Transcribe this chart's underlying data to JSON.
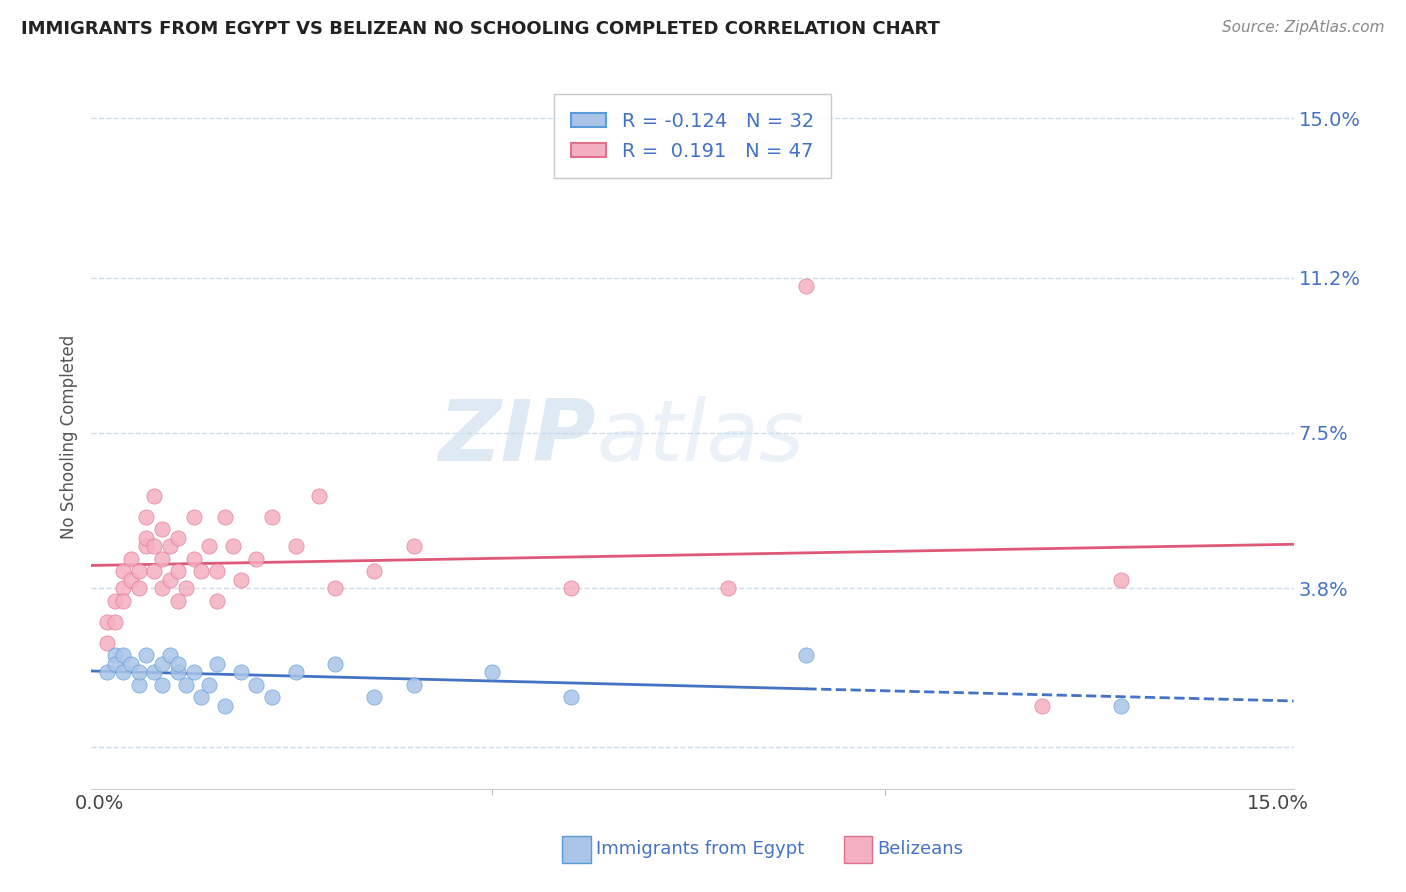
{
  "title": "IMMIGRANTS FROM EGYPT VS BELIZEAN NO SCHOOLING COMPLETED CORRELATION CHART",
  "source": "Source: ZipAtlas.com",
  "ylabel": "No Schooling Completed",
  "legend_egypt": "Immigrants from Egypt",
  "legend_belize": "Belizeans",
  "r_egypt": -0.124,
  "n_egypt": 32,
  "r_belize": 0.191,
  "n_belize": 47,
  "xlim": [
    -0.001,
    0.152
  ],
  "ylim": [
    -0.01,
    0.158
  ],
  "ytick_positions": [
    0.0,
    0.038,
    0.075,
    0.112,
    0.15
  ],
  "ytick_labels": [
    "",
    "3.8%",
    "7.5%",
    "11.2%",
    "15.0%"
  ],
  "xtick_positions": [
    0.0,
    0.15
  ],
  "xtick_labels": [
    "0.0%",
    "15.0%"
  ],
  "watermark_zip": "ZIP",
  "watermark_atlas": "atlas",
  "color_egypt": "#aac4e8",
  "color_egypt_edge": "#5b9bd5",
  "color_belize": "#f4b0c0",
  "color_belize_edge": "#e07090",
  "line_egypt_color": "#4472c4",
  "line_belize_color": "#e05878",
  "grid_color": "#d0dde8",
  "egypt_x": [
    0.001,
    0.002,
    0.002,
    0.003,
    0.003,
    0.004,
    0.005,
    0.005,
    0.006,
    0.007,
    0.008,
    0.008,
    0.009,
    0.01,
    0.01,
    0.011,
    0.012,
    0.013,
    0.014,
    0.015,
    0.016,
    0.018,
    0.02,
    0.022,
    0.025,
    0.03,
    0.035,
    0.04,
    0.05,
    0.06,
    0.09,
    0.13
  ],
  "egypt_y": [
    0.018,
    0.022,
    0.02,
    0.018,
    0.022,
    0.02,
    0.015,
    0.018,
    0.022,
    0.018,
    0.02,
    0.015,
    0.022,
    0.018,
    0.02,
    0.015,
    0.018,
    0.012,
    0.015,
    0.02,
    0.01,
    0.018,
    0.015,
    0.012,
    0.018,
    0.02,
    0.012,
    0.015,
    0.018,
    0.012,
    0.022,
    0.01
  ],
  "belize_x": [
    0.001,
    0.001,
    0.002,
    0.002,
    0.003,
    0.003,
    0.003,
    0.004,
    0.004,
    0.005,
    0.005,
    0.006,
    0.006,
    0.006,
    0.007,
    0.007,
    0.007,
    0.008,
    0.008,
    0.008,
    0.009,
    0.009,
    0.01,
    0.01,
    0.01,
    0.011,
    0.012,
    0.012,
    0.013,
    0.014,
    0.015,
    0.015,
    0.016,
    0.017,
    0.018,
    0.02,
    0.022,
    0.025,
    0.028,
    0.03,
    0.035,
    0.04,
    0.06,
    0.08,
    0.09,
    0.12,
    0.13
  ],
  "belize_y": [
    0.03,
    0.025,
    0.035,
    0.03,
    0.038,
    0.042,
    0.035,
    0.04,
    0.045,
    0.038,
    0.042,
    0.048,
    0.05,
    0.055,
    0.042,
    0.048,
    0.06,
    0.038,
    0.045,
    0.052,
    0.04,
    0.048,
    0.035,
    0.042,
    0.05,
    0.038,
    0.045,
    0.055,
    0.042,
    0.048,
    0.035,
    0.042,
    0.055,
    0.048,
    0.04,
    0.045,
    0.055,
    0.048,
    0.06,
    0.038,
    0.042,
    0.048,
    0.038,
    0.038,
    0.11,
    0.01,
    0.04
  ]
}
